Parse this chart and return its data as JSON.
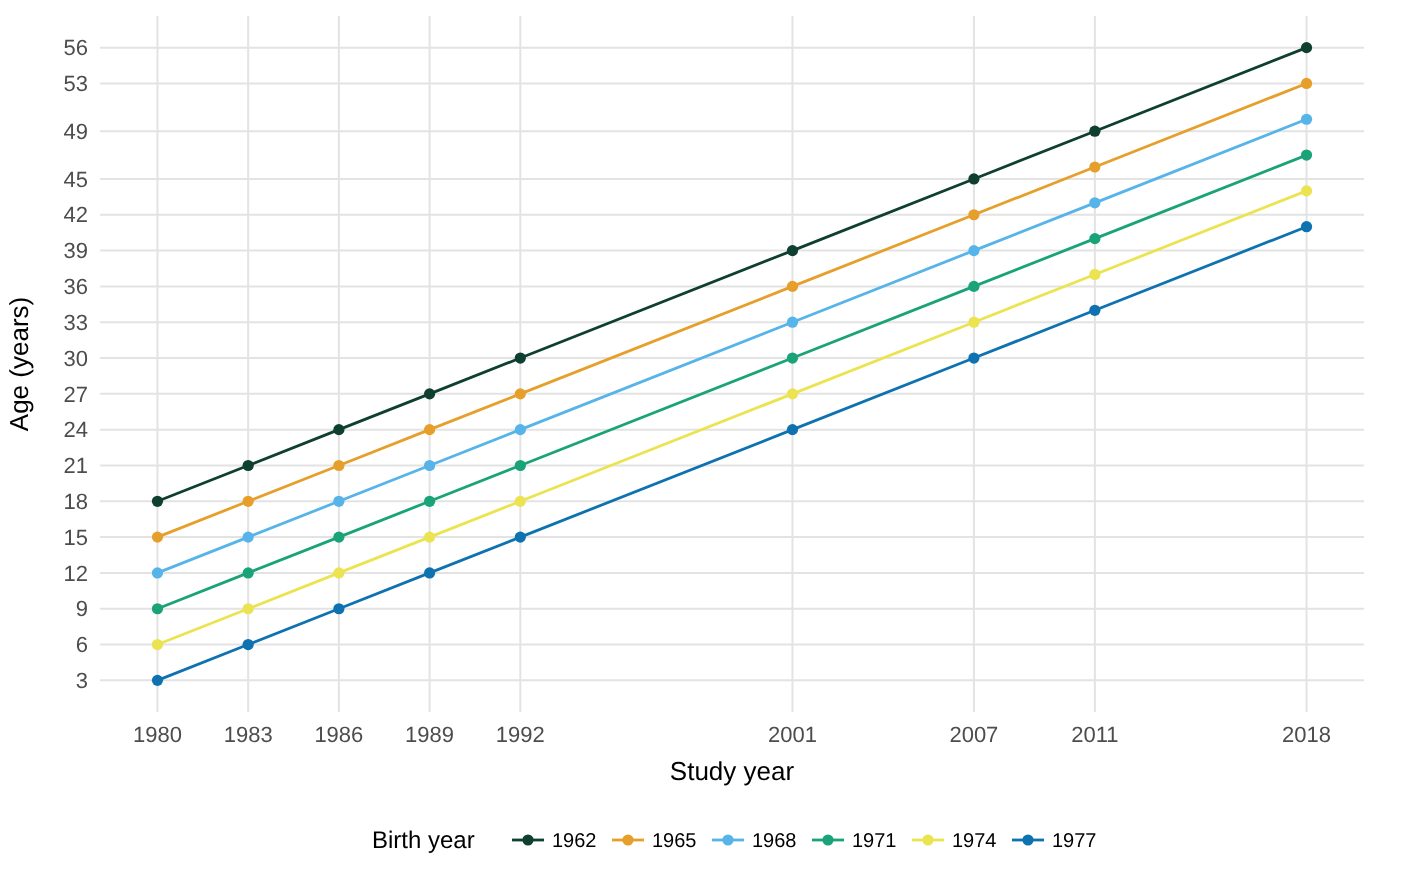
{
  "chart_data": {
    "type": "line",
    "xlabel": "Study year",
    "ylabel": "Age (years)",
    "legend_title": "Birth year",
    "x": [
      1980,
      1983,
      1986,
      1989,
      1992,
      2001,
      2007,
      2011,
      2018
    ],
    "series": [
      {
        "name": "1962",
        "color": "#0e3f30",
        "values": [
          18,
          21,
          24,
          27,
          30,
          39,
          45,
          49,
          56
        ]
      },
      {
        "name": "1965",
        "color": "#e69f2a",
        "values": [
          15,
          18,
          21,
          24,
          27,
          36,
          42,
          46,
          53
        ]
      },
      {
        "name": "1968",
        "color": "#56b4e9",
        "values": [
          12,
          15,
          18,
          21,
          24,
          33,
          39,
          43,
          50
        ]
      },
      {
        "name": "1971",
        "color": "#1aa378",
        "values": [
          9,
          12,
          15,
          18,
          21,
          30,
          36,
          40,
          47
        ]
      },
      {
        "name": "1974",
        "color": "#ece351",
        "values": [
          6,
          9,
          12,
          15,
          18,
          27,
          33,
          37,
          44
        ]
      },
      {
        "name": "1977",
        "color": "#0f72b0",
        "values": [
          3,
          6,
          9,
          12,
          15,
          24,
          30,
          34,
          41
        ]
      }
    ],
    "xlim": [
      1978.1,
      2019.9
    ],
    "xticks": [
      1980,
      1983,
      1986,
      1989,
      1992,
      2001,
      2007,
      2011,
      2018
    ],
    "ylim": [
      0.35,
      58.65
    ],
    "yticks": [
      3,
      6,
      9,
      12,
      15,
      18,
      21,
      24,
      27,
      30,
      33,
      36,
      39,
      42,
      45,
      49,
      53,
      56
    ],
    "grid": true,
    "legend": "bottom",
    "marker": "circle",
    "line_style": "solid"
  }
}
